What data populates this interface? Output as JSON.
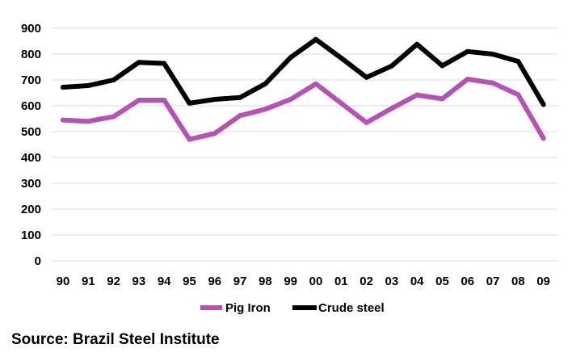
{
  "chart_data": {
    "type": "line",
    "title": "",
    "xlabel": "",
    "ylabel": "",
    "categories": [
      "90",
      "91",
      "92",
      "93",
      "94",
      "95",
      "96",
      "97",
      "98",
      "99",
      "00",
      "01",
      "02",
      "03",
      "04",
      "05",
      "06",
      "07",
      "08",
      "09"
    ],
    "ylim": [
      0,
      900
    ],
    "yticks": [
      "0",
      "100",
      "200",
      "300",
      "400",
      "500",
      "600",
      "700",
      "800",
      "900"
    ],
    "grid": true,
    "legend_position": "bottom",
    "series": [
      {
        "name": "Pig Iron",
        "color": "#b552b3",
        "values": [
          545,
          540,
          558,
          622,
          622,
          470,
          493,
          562,
          587,
          625,
          685,
          610,
          535,
          590,
          642,
          627,
          703,
          688,
          643,
          474
        ]
      },
      {
        "name": "Crude steel",
        "color": "#000000",
        "values": [
          672,
          678,
          700,
          768,
          764,
          610,
          625,
          632,
          685,
          787,
          857,
          785,
          710,
          754,
          838,
          755,
          810,
          800,
          772,
          605
        ]
      }
    ]
  },
  "source_note": "Source: Brazil Steel Institute"
}
